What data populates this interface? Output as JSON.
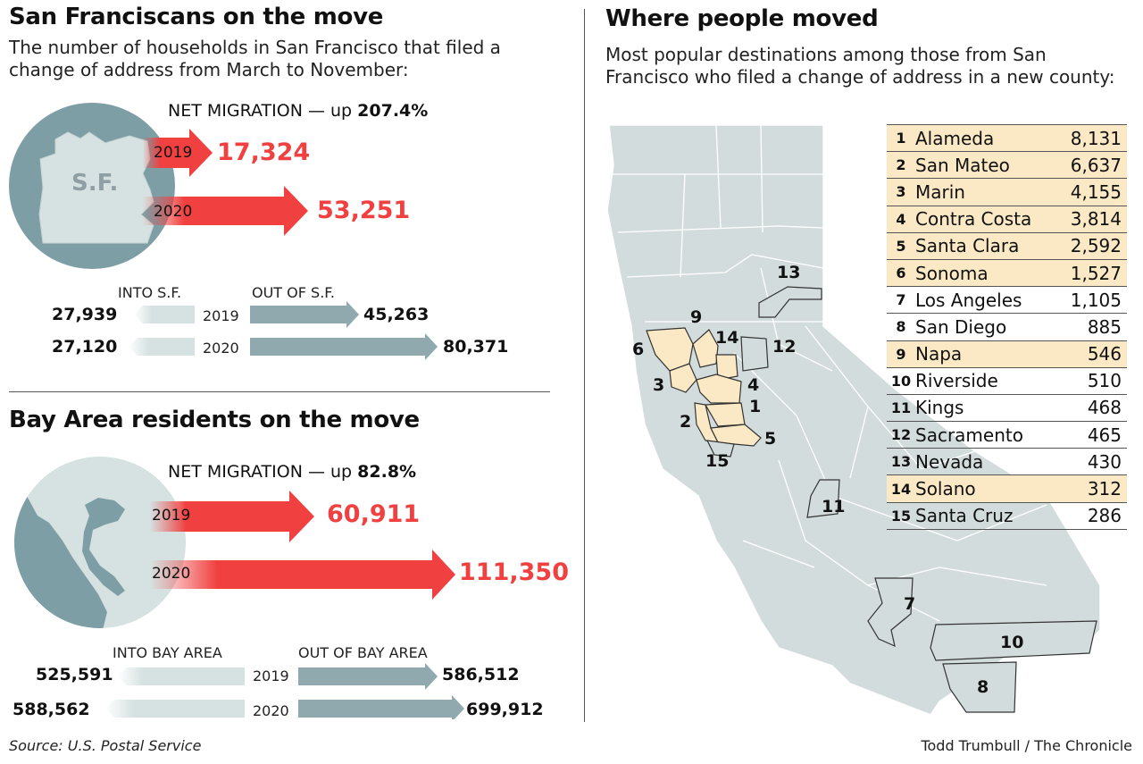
{
  "left_top": {
    "title": "San Franciscans on the move",
    "subtitle": "The number of households in San Francisco that filed a change of address from March to November:",
    "map_label": "S.F.",
    "net_label": "NET MIGRATION — up",
    "net_pct": "207.4%",
    "net_rows": [
      {
        "year": "2019",
        "value": "17,324"
      },
      {
        "year": "2020",
        "value": "53,251"
      }
    ],
    "into_label": "INTO S.F.",
    "out_label": "OUT OF S.F.",
    "flow_rows": [
      {
        "year": "2019",
        "into": "27,939",
        "out": "45,263"
      },
      {
        "year": "2020",
        "into": "27,120",
        "out": "80,371"
      }
    ]
  },
  "left_bottom": {
    "title": "Bay Area residents on the move",
    "net_label": "NET MIGRATION — up",
    "net_pct": "82.8%",
    "net_rows": [
      {
        "year": "2019",
        "value": "60,911"
      },
      {
        "year": "2020",
        "value": "111,350"
      }
    ],
    "into_label": "INTO BAY AREA",
    "out_label": "OUT OF BAY AREA",
    "flow_rows": [
      {
        "year": "2019",
        "into": "525,591",
        "out": "586,512"
      },
      {
        "year": "2020",
        "into": "588,562",
        "out": "699,912"
      }
    ]
  },
  "right": {
    "title": "Where people moved",
    "subtitle": "Most popular destinations among those from San Francisco who filed a change of address in a new county:",
    "map_labels": [
      "1",
      "2",
      "3",
      "4",
      "5",
      "6",
      "7",
      "8",
      "9",
      "10",
      "11",
      "12",
      "13",
      "14",
      "15"
    ],
    "destinations": [
      {
        "rank": "1",
        "county": "Alameda",
        "value": "8,131",
        "highlight": true
      },
      {
        "rank": "2",
        "county": "San Mateo",
        "value": "6,637",
        "highlight": true
      },
      {
        "rank": "3",
        "county": "Marin",
        "value": "4,155",
        "highlight": true
      },
      {
        "rank": "4",
        "county": "Contra Costa",
        "value": "3,814",
        "highlight": true
      },
      {
        "rank": "5",
        "county": "Santa Clara",
        "value": "2,592",
        "highlight": true
      },
      {
        "rank": "6",
        "county": "Sonoma",
        "value": "1,527",
        "highlight": true
      },
      {
        "rank": "7",
        "county": "Los Angeles",
        "value": "1,105",
        "highlight": false
      },
      {
        "rank": "8",
        "county": "San Diego",
        "value": "885",
        "highlight": false
      },
      {
        "rank": "9",
        "county": "Napa",
        "value": "546",
        "highlight": true
      },
      {
        "rank": "10",
        "county": "Riverside",
        "value": "510",
        "highlight": false
      },
      {
        "rank": "11",
        "county": "Kings",
        "value": "468",
        "highlight": false
      },
      {
        "rank": "12",
        "county": "Sacramento",
        "value": "465",
        "highlight": false
      },
      {
        "rank": "13",
        "county": "Nevada",
        "value": "430",
        "highlight": false
      },
      {
        "rank": "14",
        "county": "Solano",
        "value": "312",
        "highlight": true
      },
      {
        "rank": "15",
        "county": "Santa Cruz",
        "value": "286",
        "highlight": false
      }
    ]
  },
  "footer": {
    "source": "Source: U.S. Postal Service",
    "credit": "Todd Trumbull / The Chronicle"
  },
  "colors": {
    "accent_red": "#f04040",
    "out_arrow": "#8fa9ae",
    "in_arrow": "#d6e1e1",
    "highlight": "#fbe9c5",
    "map_gray": "#d3dcdc",
    "globe": "#7e9ea5"
  }
}
